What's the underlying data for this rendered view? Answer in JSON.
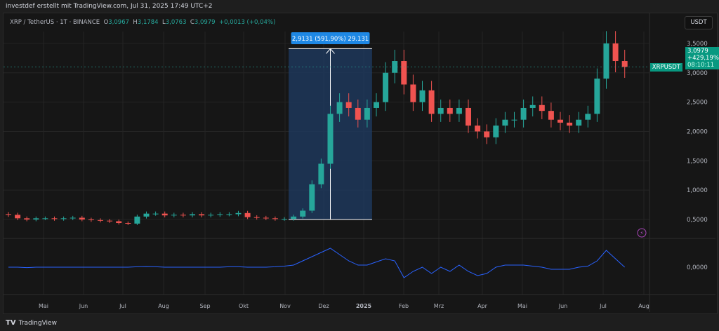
{
  "header": {
    "credit": "investdef erstellt mit TradingView.com, Jul 31, 2025 17:49 UTC+2"
  },
  "legend": {
    "symbol": "XRP / TetherUS · 1T · BINANCE",
    "o_label": "O",
    "o": "3,0967",
    "h_label": "H",
    "h": "3,1784",
    "l_label": "L",
    "l": "3,0763",
    "c_label": "C",
    "c": "3,0979",
    "change": "+0,0013 (+0,04%)"
  },
  "currency_button": "USDT",
  "price_tag": {
    "symbol": "XRPUSDT",
    "price": "3,0979",
    "change": "+429,19%",
    "countdown": "08:10:11"
  },
  "measure": {
    "label": "2,9131 (591,90%) 29.131",
    "from_price": 0.5,
    "to_price": 3.41,
    "from_week": 31,
    "to_week": 39
  },
  "indicator": {
    "zero_label": "0,0000",
    "alert_icon": "lightning-icon"
  },
  "footer": {
    "logo": "TradingView"
  },
  "colors": {
    "up": "#26a69a",
    "down": "#ef5350",
    "indicator": "#2962ff",
    "measure_fill": "#1e3a5f",
    "tag": "#089981",
    "label_blue": "#2962ff"
  },
  "chart_data": {
    "type": "candlestick",
    "interval": "weekly approximation of daily candles",
    "start": "2024-04-01",
    "x_ticks": [
      "Mai",
      "Jun",
      "Jul",
      "Aug",
      "Sep",
      "Okt",
      "Nov",
      "Dez",
      "2025",
      "Feb",
      "Mrz",
      "Apr",
      "Mai",
      "Jun",
      "Jul",
      "Aug"
    ],
    "y_ticks": [
      "0,5000",
      "1,0000",
      "1,5000",
      "2,0000",
      "2,5000",
      "3,0000",
      "3,5000"
    ],
    "y_tick_values": [
      0.5,
      1.0,
      1.5,
      2.0,
      2.5,
      3.0,
      3.5
    ],
    "ylim": [
      0.2,
      3.8
    ],
    "last_price": 3.0979,
    "closes": [
      0.58,
      0.52,
      0.5,
      0.52,
      0.52,
      0.51,
      0.52,
      0.53,
      0.5,
      0.49,
      0.48,
      0.47,
      0.44,
      0.43,
      0.55,
      0.6,
      0.6,
      0.57,
      0.58,
      0.57,
      0.59,
      0.57,
      0.58,
      0.59,
      0.59,
      0.61,
      0.54,
      0.53,
      0.52,
      0.51,
      0.51,
      0.55,
      0.65,
      1.1,
      1.45,
      2.3,
      2.5,
      2.4,
      2.2,
      2.4,
      2.5,
      3.0,
      3.2,
      2.8,
      2.5,
      2.7,
      2.3,
      2.4,
      2.3,
      2.4,
      2.1,
      2.0,
      1.9,
      2.1,
      2.2,
      2.2,
      2.4,
      2.45,
      2.35,
      2.2,
      2.15,
      2.1,
      2.2,
      2.3,
      2.9,
      3.5,
      3.2,
      3.1
    ],
    "indicator_values": [
      0,
      0,
      -0.02,
      0,
      0,
      0,
      0,
      0,
      0,
      0,
      0,
      0,
      0,
      0,
      0.02,
      0.03,
      0.02,
      0,
      0,
      0,
      0,
      0,
      0,
      0,
      0.02,
      0.02,
      0,
      0,
      0,
      0.02,
      0.05,
      0.1,
      0.3,
      0.5,
      0.7,
      0.9,
      0.6,
      0.3,
      0.1,
      0.1,
      0.25,
      0.4,
      0.3,
      -0.5,
      -0.2,
      0,
      -0.3,
      0,
      -0.2,
      0.1,
      -0.2,
      -0.4,
      -0.3,
      0,
      0.1,
      0.1,
      0.1,
      0.05,
      0,
      -0.1,
      -0.1,
      -0.1,
      0,
      0.05,
      0.3,
      0.8,
      0.4,
      0
    ]
  }
}
